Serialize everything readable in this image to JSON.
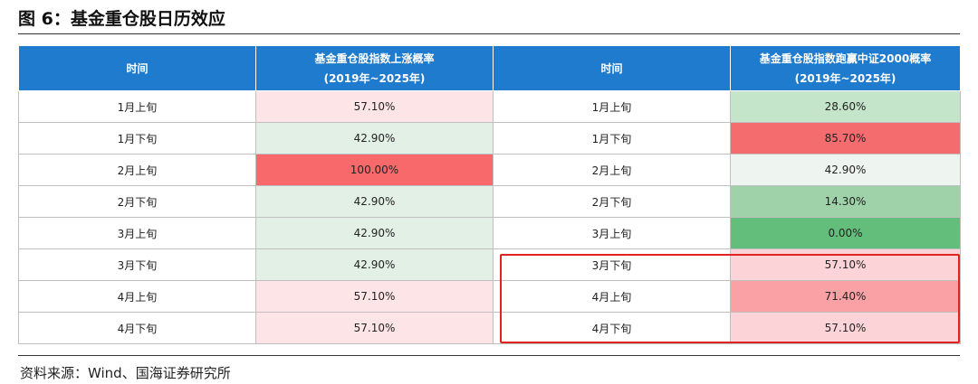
{
  "title": "图 6：基金重仓股日历效应",
  "table": {
    "header": [
      [
        "时间"
      ],
      [
        "基金重仓股指数上涨概率",
        "(2019年~2025年)"
      ],
      [
        "时间"
      ],
      [
        "基金重仓股指数跑赢中证2000概率",
        "(2019年~2025年)"
      ]
    ],
    "rows": [
      [
        "1月上旬",
        "57.10%",
        "1月上旬",
        "28.60%"
      ],
      [
        "1月下旬",
        "42.90%",
        "1月下旬",
        "85.70%"
      ],
      [
        "2月上旬",
        "100.00%",
        "2月上旬",
        "42.90%"
      ],
      [
        "2月下旬",
        "42.90%",
        "2月下旬",
        "14.30%"
      ],
      [
        "3月上旬",
        "42.90%",
        "3月上旬",
        "0.00%"
      ],
      [
        "3月下旬",
        "42.90%",
        "3月下旬",
        "57.10%"
      ],
      [
        "4月上旬",
        "57.10%",
        "4月上旬",
        "71.40%"
      ],
      [
        "4月下旬",
        "57.10%",
        "4月下旬",
        "57.10%"
      ]
    ]
  },
  "source": "资料来源：Wind、国海证券研究所"
}
